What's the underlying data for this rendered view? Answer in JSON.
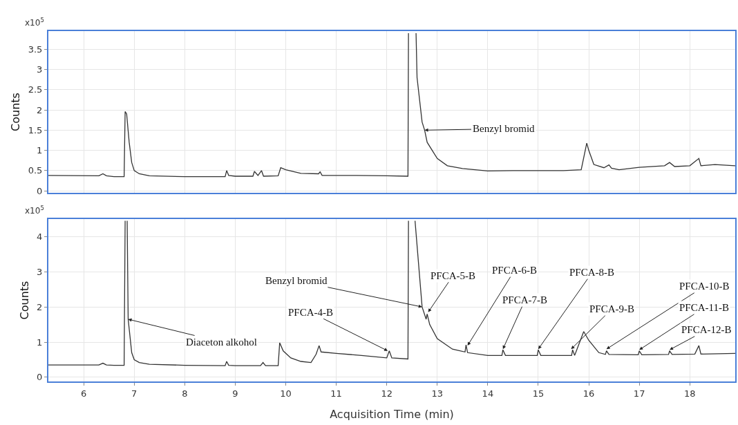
{
  "chart_data": [
    {
      "type": "line",
      "ylabel": "Counts",
      "annotations": [
        "x10$^{5}$",
        {
          "text": "Benzyl bromid",
          "x": 12.75,
          "y": 1.5
        }
      ],
      "xlim": [
        5.3,
        18.9
      ],
      "ylim": [
        -0.05,
        3.95
      ],
      "xticks": [
        6,
        7,
        8,
        9,
        10,
        11,
        12,
        13,
        14,
        15,
        16,
        17,
        18
      ],
      "yticks": [
        0,
        0.5,
        1,
        1.5,
        2,
        2.5,
        3,
        3.5
      ],
      "grid": true,
      "tick_labels": "y",
      "marker": "none",
      "line_style": "solid",
      "series": [
        {
          "color": "#333333",
          "x": [
            5.3,
            6.3,
            6.38,
            6.45,
            6.6,
            6.8,
            6.82,
            6.85,
            6.9,
            6.95,
            7.0,
            7.1,
            7.3,
            8.0,
            8.8,
            8.83,
            8.87,
            9.0,
            9.35,
            9.38,
            9.45,
            9.52,
            9.56,
            9.85,
            9.9,
            10.0,
            10.3,
            10.65,
            10.68,
            10.72,
            11.0,
            11.4,
            12.0,
            12.42,
            12.43,
            12.5,
            12.58,
            12.6,
            12.7,
            12.75,
            12.8,
            12.9,
            13.0,
            13.2,
            13.5,
            14.0,
            14.5,
            15.0,
            15.5,
            15.85,
            15.96,
            16.0,
            16.1,
            16.3,
            16.4,
            16.45,
            16.6,
            17.0,
            17.5,
            17.6,
            17.7,
            18.0,
            18.18,
            18.22,
            18.5,
            18.9
          ],
          "values": [
            0.38,
            0.37,
            0.42,
            0.37,
            0.35,
            0.35,
            1.96,
            1.9,
            1.2,
            0.7,
            0.5,
            0.42,
            0.37,
            0.35,
            0.35,
            0.5,
            0.38,
            0.36,
            0.36,
            0.48,
            0.38,
            0.5,
            0.36,
            0.37,
            0.57,
            0.52,
            0.43,
            0.42,
            0.47,
            0.38,
            0.38,
            0.38,
            0.37,
            0.36,
            3.9,
            null,
            3.9,
            2.8,
            1.7,
            1.5,
            1.2,
            1.0,
            0.8,
            0.62,
            0.55,
            0.49,
            0.5,
            0.5,
            0.5,
            0.52,
            1.18,
            1.0,
            0.65,
            0.57,
            0.64,
            0.56,
            0.52,
            0.58,
            0.62,
            0.7,
            0.6,
            0.62,
            0.8,
            0.62,
            0.65,
            0.62
          ]
        }
      ]
    },
    {
      "type": "line",
      "xlabel": "Acquisition Time (min)",
      "ylabel": "Counts",
      "annotations": [
        "x10$^{5}$",
        {
          "text": "Diaceton alkohol",
          "x": 6.88,
          "y": 1.65
        },
        {
          "text": "Benzyl bromid",
          "x": 12.7,
          "y": 2.0
        },
        {
          "text": "PFCA-4-B",
          "x": 12.02,
          "y": 0.75
        },
        {
          "text": "PFCA-5-B",
          "x": 12.82,
          "y": 1.85
        },
        {
          "text": "PFCA-6-B",
          "x": 13.6,
          "y": 0.9
        },
        {
          "text": "PFCA-7-B",
          "x": 14.3,
          "y": 0.8
        },
        {
          "text": "PFCA-8-B",
          "x": 15.0,
          "y": 0.8
        },
        {
          "text": "PFCA-9-B",
          "x": 15.65,
          "y": 0.8
        },
        {
          "text": "PFCA-10-B",
          "x": 16.35,
          "y": 0.8
        },
        {
          "text": "PFCA-11-B",
          "x": 17.0,
          "y": 0.78
        },
        {
          "text": "PFCA-12-B",
          "x": 17.6,
          "y": 0.78
        }
      ],
      "xlim": [
        5.3,
        18.9
      ],
      "ylim": [
        -0.12,
        4.5
      ],
      "xticks": [
        6,
        7,
        8,
        9,
        10,
        11,
        12,
        13,
        14,
        15,
        16,
        17,
        18
      ],
      "yticks": [
        0,
        1,
        2,
        3,
        4
      ],
      "grid": true,
      "marker": "none",
      "line_style": "solid",
      "series": [
        {
          "color": "#333333",
          "x": [
            5.3,
            6.3,
            6.38,
            6.45,
            6.6,
            6.8,
            6.82,
            6.84,
            6.86,
            6.88,
            6.95,
            7.0,
            7.1,
            7.3,
            8.0,
            8.8,
            8.83,
            8.87,
            9.0,
            9.5,
            9.55,
            9.6,
            9.85,
            9.88,
            9.95,
            10.1,
            10.3,
            10.5,
            10.6,
            10.66,
            10.7,
            11.0,
            11.5,
            12.0,
            12.05,
            12.1,
            12.42,
            12.43,
            12.5,
            12.56,
            12.7,
            12.78,
            12.8,
            12.85,
            13.0,
            13.3,
            13.55,
            13.57,
            13.6,
            14.0,
            14.28,
            14.3,
            14.35,
            14.98,
            15.0,
            15.05,
            15.66,
            15.68,
            15.72,
            15.9,
            16.0,
            16.2,
            16.33,
            16.35,
            16.4,
            16.98,
            17.0,
            17.05,
            17.58,
            17.6,
            17.65,
            18.1,
            18.18,
            18.22,
            18.9
          ],
          "values": [
            0.35,
            0.35,
            0.4,
            0.35,
            0.34,
            0.34,
            4.45,
            null,
            4.45,
            1.65,
            0.7,
            0.5,
            0.42,
            0.37,
            0.34,
            0.33,
            0.45,
            0.34,
            0.33,
            0.33,
            0.42,
            0.33,
            0.33,
            0.98,
            0.75,
            0.55,
            0.45,
            0.42,
            0.65,
            0.9,
            0.72,
            0.68,
            0.62,
            0.55,
            0.75,
            0.55,
            0.52,
            4.45,
            null,
            4.45,
            2.0,
            1.65,
            1.8,
            1.5,
            1.1,
            0.8,
            0.72,
            0.92,
            0.7,
            0.62,
            0.62,
            0.78,
            0.62,
            0.62,
            0.78,
            0.62,
            0.62,
            0.78,
            0.62,
            1.3,
            1.05,
            0.7,
            0.65,
            0.75,
            0.65,
            0.64,
            0.75,
            0.64,
            0.65,
            0.75,
            0.65,
            0.66,
            0.9,
            0.66,
            0.68
          ]
        }
      ]
    }
  ]
}
